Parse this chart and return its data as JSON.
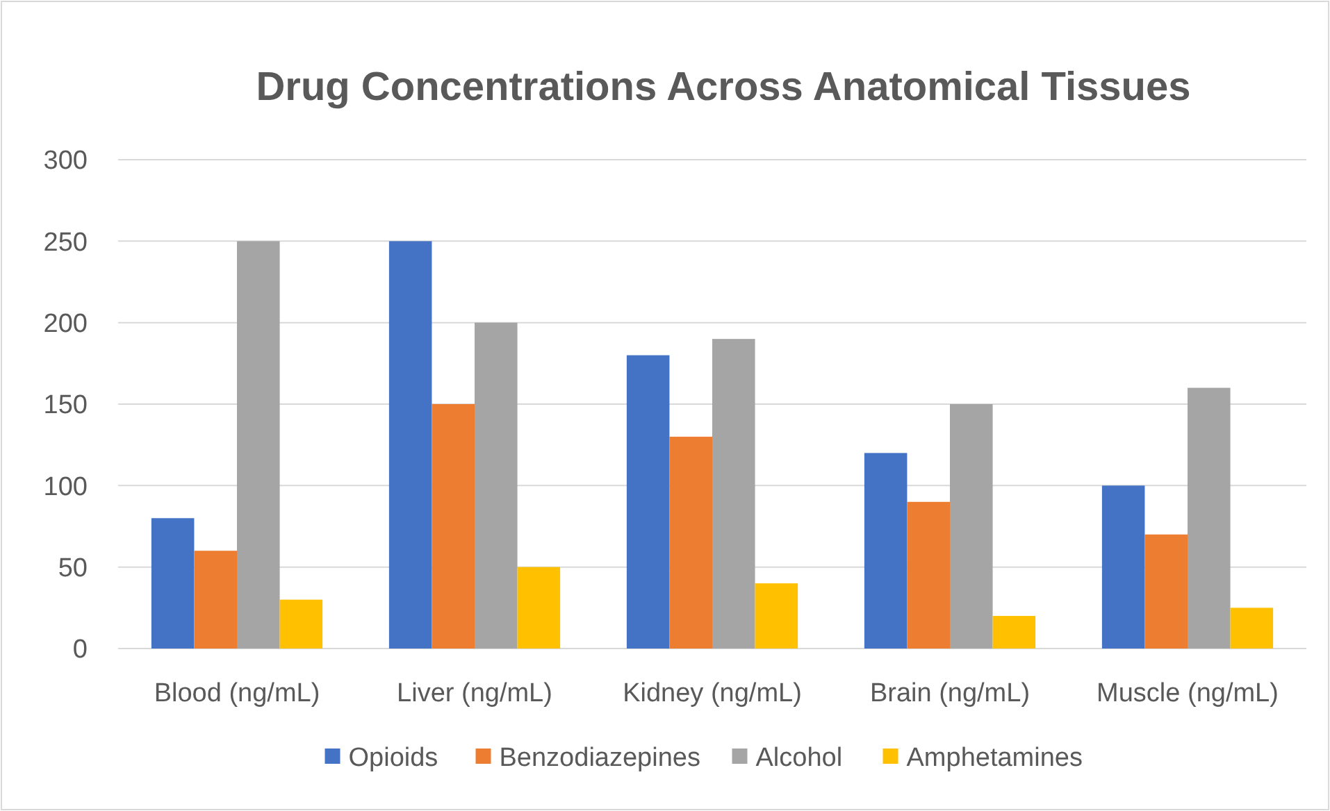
{
  "chart_data": {
    "type": "bar",
    "title": "Drug Concentrations Across Anatomical Tissues",
    "categories": [
      "Blood (ng/mL)",
      "Liver (ng/mL)",
      "Kidney (ng/mL)",
      "Brain (ng/mL)",
      "Muscle (ng/mL)"
    ],
    "series": [
      {
        "name": "Opioids",
        "color": "#4472c4",
        "values": [
          80,
          250,
          180,
          120,
          100
        ]
      },
      {
        "name": "Benzodiazepines",
        "color": "#ed7d31",
        "values": [
          60,
          150,
          130,
          90,
          70
        ]
      },
      {
        "name": "Alcohol",
        "color": "#a5a5a5",
        "values": [
          250,
          200,
          190,
          150,
          160
        ]
      },
      {
        "name": "Amphetamines",
        "color": "#ffc000",
        "values": [
          30,
          50,
          40,
          20,
          25
        ]
      }
    ],
    "ylim": [
      0,
      300
    ],
    "yticks": [
      0,
      50,
      100,
      150,
      200,
      250,
      300
    ],
    "grid": "y",
    "legend": "bottom"
  }
}
